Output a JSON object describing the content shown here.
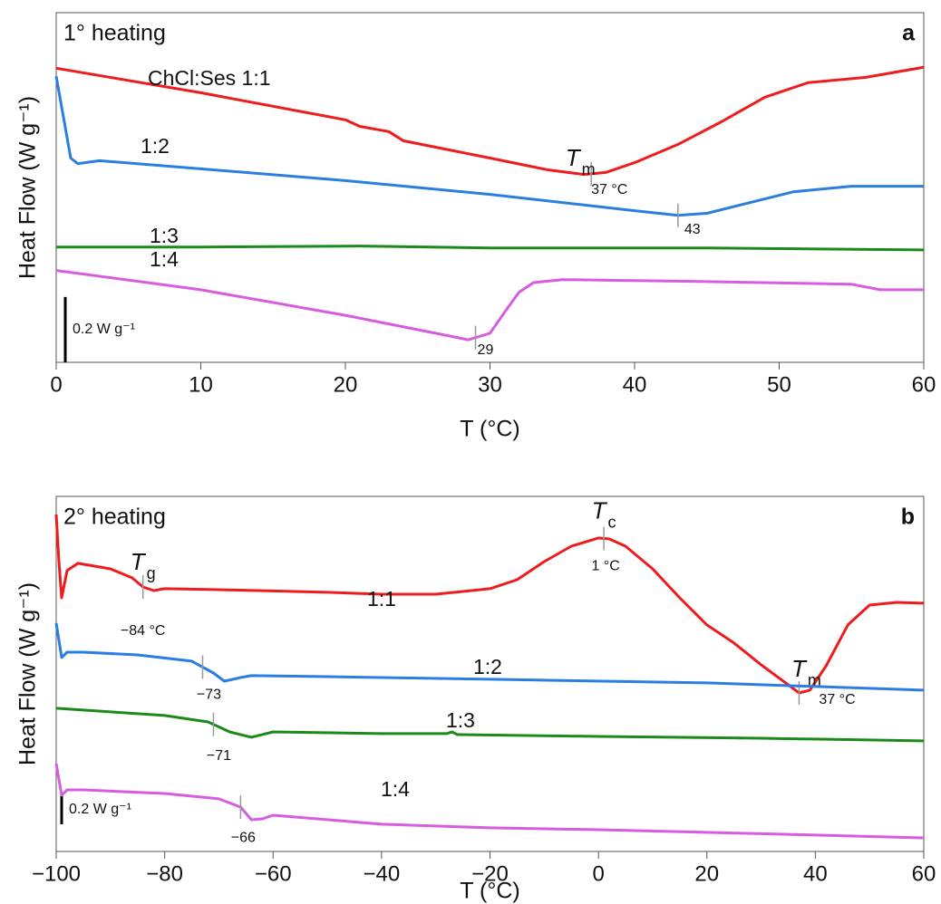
{
  "chart_data": [
    {
      "type": "line",
      "panel_title": "1° heating",
      "panel_letter": "a",
      "x_label": "T (°C)",
      "y_label": "Heat Flow (W g⁻¹)",
      "xlim": [
        0,
        60
      ],
      "xticks": [
        0,
        10,
        20,
        30,
        40,
        50,
        60
      ],
      "ylim": [
        0,
        1.07
      ],
      "scale_bar": {
        "value": 0.2,
        "label": "0.2 W g⁻¹"
      },
      "series": [
        {
          "name": "ChCl:Ses 1:1",
          "color": "#ee1c1c",
          "x": [
            0,
            10,
            20,
            21,
            23,
            24,
            30,
            34,
            36.5,
            38,
            40,
            43,
            46,
            49,
            52,
            56,
            60
          ],
          "values": [
            0.9,
            0.825,
            0.742,
            0.722,
            0.706,
            0.678,
            0.625,
            0.589,
            0.575,
            0.581,
            0.611,
            0.667,
            0.736,
            0.811,
            0.856,
            0.872,
            0.903
          ],
          "marker": {
            "x": 37,
            "label": "37 °C",
            "symbol": "T",
            "subscript": "m"
          }
        },
        {
          "name": "1:2",
          "color": "#2a7de1",
          "x": [
            0,
            0.5,
            1,
            1.5,
            3,
            10,
            20,
            30,
            40,
            43,
            45,
            48,
            51,
            55,
            60
          ],
          "values": [
            0.875,
            0.75,
            0.625,
            0.608,
            0.617,
            0.592,
            0.556,
            0.514,
            0.464,
            0.45,
            0.456,
            0.489,
            0.522,
            0.539,
            0.539
          ],
          "marker": {
            "x": 43,
            "label": "43"
          }
        },
        {
          "name": "1:3",
          "color": "#1a8a1a",
          "x": [
            0,
            10,
            21,
            30,
            45,
            60
          ],
          "values": [
            0.353,
            0.353,
            0.356,
            0.35,
            0.35,
            0.344
          ]
        },
        {
          "name": "1:4",
          "color": "#d65ce0",
          "x": [
            0,
            10,
            20,
            28.5,
            30,
            31,
            32,
            33,
            35,
            45,
            55,
            57,
            60
          ],
          "values": [
            0.281,
            0.222,
            0.144,
            0.069,
            0.089,
            0.153,
            0.214,
            0.244,
            0.253,
            0.247,
            0.239,
            0.222,
            0.222
          ],
          "marker": {
            "x": 29,
            "label": "29"
          }
        }
      ]
    },
    {
      "type": "line",
      "panel_title": "2° heating",
      "panel_letter": "b",
      "x_label": "T (°C)",
      "y_label": "Heat Flow (W g⁻¹)",
      "xlim": [
        -100,
        60
      ],
      "xticks": [
        {
          "value": -100,
          "label": "−100"
        },
        {
          "value": -80,
          "label": "−80"
        },
        {
          "value": -60,
          "label": "−60"
        },
        {
          "value": -40,
          "label": "−40"
        },
        {
          "value": -20,
          "label": "−20"
        },
        0,
        20,
        40,
        60
      ],
      "ylim": [
        0,
        2.45
      ],
      "scale_bar": {
        "value": 0.2,
        "label": "0.2 W g⁻¹"
      },
      "series": [
        {
          "name": "1:1",
          "color": "#ee1c1c",
          "x": [
            -100,
            -99.5,
            -99,
            -98,
            -96,
            -90,
            -86,
            -84,
            -82,
            -80,
            -70,
            -50,
            -40,
            -30,
            -20,
            -15,
            -10,
            -5,
            0,
            2,
            5,
            10,
            15,
            20,
            25,
            30,
            35,
            37,
            39,
            42,
            46,
            50,
            55,
            60
          ],
          "values": [
            2.325,
            2.0,
            1.75,
            1.938,
            1.988,
            1.95,
            1.888,
            1.825,
            1.8,
            1.813,
            1.806,
            1.788,
            1.775,
            1.775,
            1.813,
            1.875,
            2.0,
            2.106,
            2.163,
            2.156,
            2.106,
            1.95,
            1.75,
            1.563,
            1.438,
            1.288,
            1.15,
            1.094,
            1.113,
            1.281,
            1.563,
            1.7,
            1.719,
            1.713
          ],
          "markers": [
            {
              "x": -84,
              "label": "−84 °C",
              "symbol": "T",
              "subscript": "g"
            },
            {
              "x": 1,
              "label": "1 °C",
              "symbol": "T",
              "subscript": "c"
            },
            {
              "x": 37,
              "label": "37 °C",
              "symbol": "T",
              "subscript": "m"
            }
          ]
        },
        {
          "name": "1:2",
          "color": "#2a7de1",
          "x": [
            -100,
            -99,
            -98,
            -95,
            -85,
            -75,
            -71,
            -69,
            -66,
            -64,
            -50,
            -20,
            20,
            40,
            60
          ],
          "values": [
            1.575,
            1.338,
            1.375,
            1.375,
            1.356,
            1.313,
            1.231,
            1.175,
            1.2,
            1.213,
            1.206,
            1.188,
            1.163,
            1.138,
            1.113
          ],
          "markers": [
            {
              "x": -73,
              "label": "−73"
            }
          ]
        },
        {
          "name": "1:3",
          "color": "#1a8a1a",
          "x": [
            -100,
            -90,
            -80,
            -72,
            -68,
            -64,
            -60,
            -40,
            -28,
            -27,
            -26,
            0,
            30,
            60
          ],
          "values": [
            0.988,
            0.963,
            0.938,
            0.894,
            0.825,
            0.788,
            0.825,
            0.813,
            0.813,
            0.825,
            0.806,
            0.794,
            0.781,
            0.763
          ],
          "markers": [
            {
              "x": -71,
              "label": "−71"
            }
          ]
        },
        {
          "name": "1:4",
          "color": "#d65ce0",
          "x": [
            -100,
            -99,
            -98,
            -95,
            -80,
            -70,
            -66,
            -64,
            -62,
            -60,
            -40,
            -20,
            0,
            40,
            60
          ],
          "values": [
            0.606,
            0.388,
            0.425,
            0.425,
            0.4,
            0.363,
            0.306,
            0.219,
            0.225,
            0.25,
            0.188,
            0.163,
            0.15,
            0.113,
            0.094
          ],
          "markers": [
            {
              "x": -66,
              "label": "−66"
            }
          ]
        }
      ]
    }
  ]
}
